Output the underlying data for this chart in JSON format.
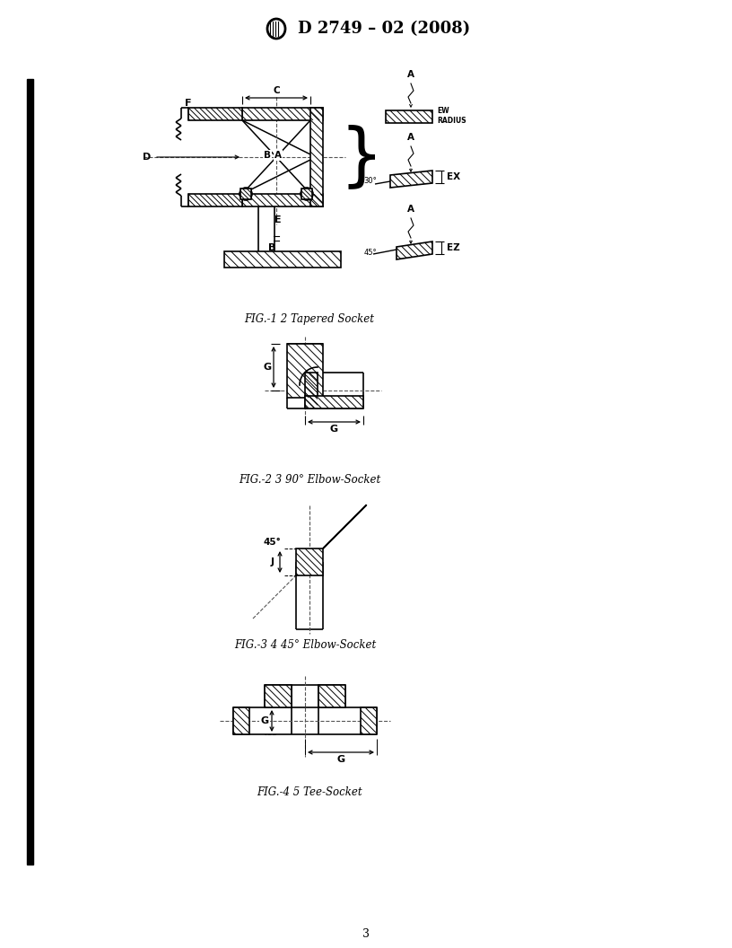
{
  "title": "D 2749 – 02 (2008)",
  "page_number": "3",
  "fig1_caption": "FIG.-1 2 Tapered Socket",
  "fig2_caption": "FIG.-2 3 90° Elbow-Socket",
  "fig3_caption": "FIG.-3 4 45° Elbow-Socket",
  "fig4_caption": "FIG.-4 5 Tee-Socket",
  "background": "#ffffff",
  "line_color": "#000000"
}
